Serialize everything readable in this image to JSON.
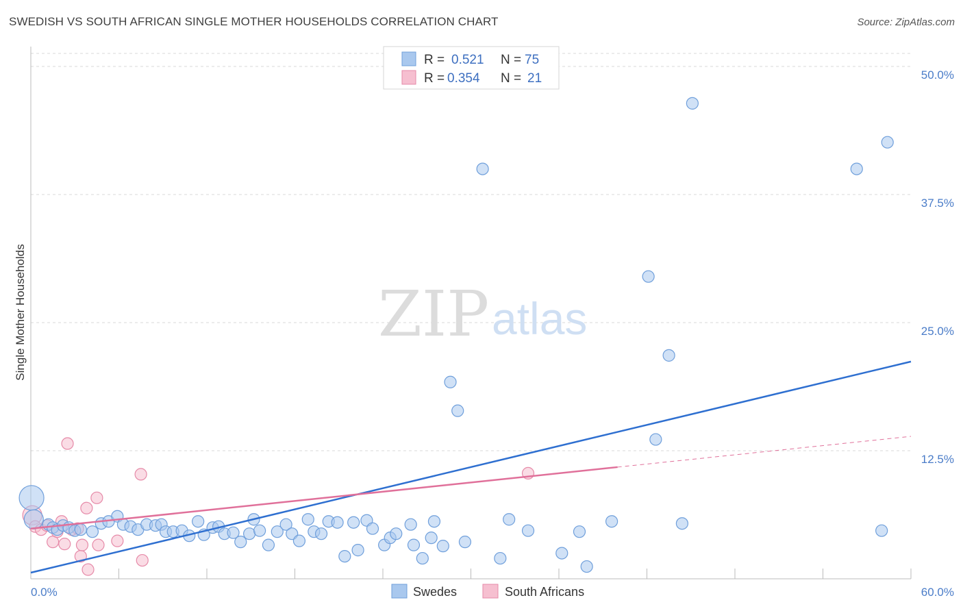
{
  "title": "SWEDISH VS SOUTH AFRICAN SINGLE MOTHER HOUSEHOLDS CORRELATION CHART",
  "source": "Source: ZipAtlas.com",
  "watermark": {
    "zip": "ZIP",
    "atlas": "atlas"
  },
  "colors": {
    "swedes_fill": "#a9c8ee",
    "swedes_stroke": "#6f9fdb",
    "swedes_line": "#2e6fd0",
    "sa_fill": "#f6bfd0",
    "sa_stroke": "#e68aa8",
    "sa_line": "#e0709a",
    "tick": "#4a7cc8",
    "grid": "#d8d8d8"
  },
  "legend": {
    "rows": [
      {
        "r_label": "R =",
        "r_value": "0.521",
        "n_label": "N =",
        "n_value": "75"
      },
      {
        "r_label": "R =",
        "r_value": "0.354",
        "n_label": "N =",
        "n_value": "21"
      }
    ]
  },
  "chart_data": {
    "type": "scatter",
    "title": "SWEDISH VS SOUTH AFRICAN SINGLE MOTHER HOUSEHOLDS CORRELATION CHART",
    "xlabel": "",
    "ylabel": "Single Mother Households",
    "xlim": [
      0,
      60
    ],
    "ylim": [
      0,
      52
    ],
    "x_tick_labels": [
      "0.0%",
      "60.0%"
    ],
    "y_ticks": [
      12.5,
      25.0,
      37.5,
      50.0
    ],
    "y_tick_labels": [
      "12.5%",
      "25.0%",
      "37.5%",
      "50.0%"
    ],
    "grid": "horizontal dashed",
    "legend_position": "top-center",
    "series": [
      {
        "name": "Swedes",
        "r": 0.521,
        "n": 75,
        "trend": {
          "x": [
            0,
            60
          ],
          "y": [
            0.6,
            21.2
          ]
        },
        "points": [
          [
            0.05,
            7.9,
            3
          ],
          [
            0.2,
            5.8,
            2
          ],
          [
            1.2,
            5.3,
            1
          ],
          [
            1.5,
            5.0,
            1
          ],
          [
            1.8,
            4.8,
            1
          ],
          [
            2.2,
            5.2,
            1
          ],
          [
            2.6,
            5.0,
            1
          ],
          [
            3.0,
            4.7,
            1
          ],
          [
            3.4,
            4.8,
            1
          ],
          [
            4.2,
            4.6,
            1
          ],
          [
            4.8,
            5.4,
            1
          ],
          [
            5.3,
            5.6,
            1
          ],
          [
            5.9,
            6.1,
            1
          ],
          [
            6.3,
            5.3,
            1
          ],
          [
            6.8,
            5.1,
            1
          ],
          [
            7.3,
            4.8,
            1
          ],
          [
            7.9,
            5.3,
            1
          ],
          [
            8.5,
            5.2,
            1
          ],
          [
            8.9,
            5.3,
            1
          ],
          [
            9.2,
            4.6,
            1
          ],
          [
            9.7,
            4.6,
            1
          ],
          [
            10.3,
            4.7,
            1
          ],
          [
            10.8,
            4.2,
            1
          ],
          [
            11.4,
            5.6,
            1
          ],
          [
            11.8,
            4.3,
            1
          ],
          [
            12.4,
            5.0,
            1
          ],
          [
            12.8,
            5.1,
            1
          ],
          [
            13.2,
            4.4,
            1
          ],
          [
            13.8,
            4.5,
            1
          ],
          [
            14.3,
            3.6,
            1
          ],
          [
            14.9,
            4.4,
            1
          ],
          [
            15.2,
            5.8,
            1
          ],
          [
            15.6,
            4.7,
            1
          ],
          [
            16.2,
            3.3,
            1
          ],
          [
            16.8,
            4.6,
            1
          ],
          [
            17.4,
            5.3,
            1
          ],
          [
            17.8,
            4.4,
            1
          ],
          [
            18.3,
            3.7,
            1
          ],
          [
            18.9,
            5.8,
            1
          ],
          [
            19.3,
            4.6,
            1
          ],
          [
            19.8,
            4.4,
            1
          ],
          [
            20.3,
            5.6,
            1
          ],
          [
            20.9,
            5.5,
            1
          ],
          [
            21.4,
            2.2,
            1
          ],
          [
            22.0,
            5.5,
            1
          ],
          [
            22.3,
            2.8,
            1
          ],
          [
            22.9,
            5.7,
            1
          ],
          [
            23.3,
            4.9,
            1
          ],
          [
            24.1,
            3.3,
            1
          ],
          [
            24.5,
            4.0,
            1
          ],
          [
            24.9,
            4.4,
            1
          ],
          [
            25.9,
            5.3,
            1
          ],
          [
            26.1,
            3.3,
            1
          ],
          [
            26.7,
            2.0,
            1
          ],
          [
            27.3,
            4.0,
            1
          ],
          [
            27.5,
            5.6,
            1
          ],
          [
            28.1,
            3.2,
            1
          ],
          [
            28.6,
            19.2,
            1
          ],
          [
            29.1,
            16.4,
            1
          ],
          [
            29.6,
            3.6,
            1
          ],
          [
            30.8,
            40.0,
            1
          ],
          [
            32.0,
            2.0,
            1
          ],
          [
            32.6,
            5.8,
            1
          ],
          [
            33.9,
            4.7,
            1
          ],
          [
            36.2,
            2.5,
            1
          ],
          [
            37.4,
            4.6,
            1
          ],
          [
            37.9,
            1.2,
            1
          ],
          [
            39.6,
            5.6,
            1
          ],
          [
            42.1,
            29.5,
            1
          ],
          [
            42.6,
            13.6,
            1
          ],
          [
            43.5,
            21.8,
            1
          ],
          [
            44.4,
            5.4,
            1
          ],
          [
            45.1,
            46.4,
            1
          ],
          [
            56.3,
            40.0,
            1
          ],
          [
            58.0,
            4.7,
            1
          ],
          [
            58.4,
            42.6,
            1
          ]
        ]
      },
      {
        "name": "South Africans",
        "r": 0.354,
        "n": 21,
        "trend": {
          "x": [
            0,
            40
          ],
          "y": [
            4.9,
            10.9
          ]
        },
        "trend_dashed": {
          "x": [
            40,
            60
          ],
          "y": [
            10.9,
            13.9
          ]
        },
        "points": [
          [
            0.1,
            6.2,
            2
          ],
          [
            0.3,
            5.1,
            1
          ],
          [
            0.7,
            4.8,
            1
          ],
          [
            1.1,
            5.2,
            1
          ],
          [
            1.5,
            3.6,
            1
          ],
          [
            1.8,
            4.6,
            1
          ],
          [
            2.1,
            5.6,
            1
          ],
          [
            2.3,
            3.4,
            1
          ],
          [
            2.5,
            13.2,
            1
          ],
          [
            2.8,
            4.8,
            1
          ],
          [
            3.2,
            4.9,
            1
          ],
          [
            3.4,
            2.2,
            1
          ],
          [
            3.5,
            3.3,
            1
          ],
          [
            3.8,
            6.9,
            1
          ],
          [
            3.9,
            0.9,
            1
          ],
          [
            4.5,
            7.9,
            1
          ],
          [
            4.6,
            3.3,
            1
          ],
          [
            5.9,
            3.7,
            1
          ],
          [
            7.5,
            10.2,
            1
          ],
          [
            7.6,
            1.8,
            1
          ],
          [
            33.9,
            10.3,
            1
          ]
        ]
      }
    ]
  }
}
